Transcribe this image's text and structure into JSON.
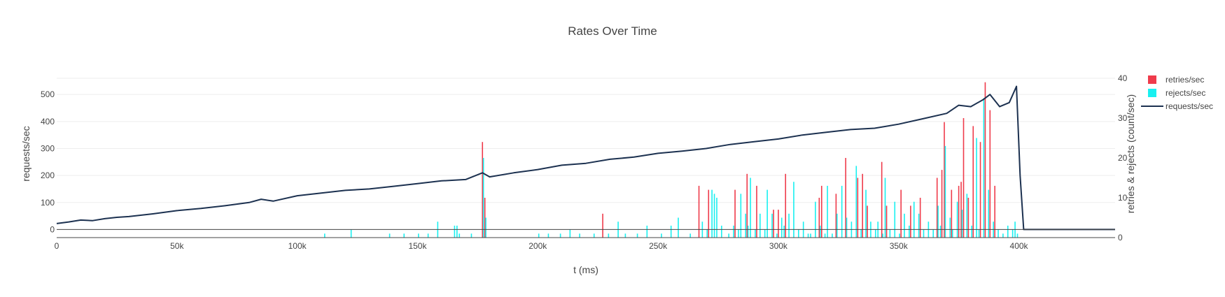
{
  "chart_data": {
    "type": "bar",
    "title": "Rates Over Time",
    "xlabel": "t (ms)",
    "ylabel": "requests/sec",
    "y2label": "retries & rejects (count/sec)",
    "xlim": [
      0,
      440000
    ],
    "ylim": [
      -30,
      560
    ],
    "y2lim": [
      0,
      40
    ],
    "xticks": [
      0,
      50000,
      100000,
      150000,
      200000,
      250000,
      300000,
      350000,
      400000
    ],
    "xtick_labels": [
      "0",
      "50k",
      "100k",
      "150k",
      "200k",
      "250k",
      "300k",
      "350k",
      "400k"
    ],
    "yticks": [
      0,
      100,
      200,
      300,
      400,
      500
    ],
    "ytick_labels": [
      "0",
      "100",
      "200",
      "300",
      "400",
      "500"
    ],
    "y2ticks": [
      0,
      10,
      20,
      30,
      40
    ],
    "y2tick_labels": [
      "0",
      "10",
      "20",
      "30",
      "40"
    ],
    "grid": true,
    "legend_position": "top-right",
    "colors": {
      "retries": "#ef3b4b",
      "rejects": "#19f0f0",
      "requests": "#1c3150",
      "grid": "#eeeeee",
      "axis": "#444444"
    },
    "series": [
      {
        "name": "requests/sec",
        "type": "line",
        "x": [
          0,
          5000,
          10000,
          15000,
          20000,
          25000,
          30000,
          40000,
          50000,
          60000,
          70000,
          80000,
          85000,
          90000,
          100000,
          110000,
          120000,
          130000,
          140000,
          150000,
          160000,
          170000,
          177000,
          180000,
          190000,
          200000,
          210000,
          220000,
          230000,
          240000,
          250000,
          260000,
          270000,
          280000,
          290000,
          300000,
          310000,
          320000,
          330000,
          340000,
          350000,
          360000,
          370000,
          375000,
          380000,
          385000,
          388000,
          392000,
          396000,
          399000,
          400500,
          402000,
          410000,
          420000,
          430000,
          440000
        ],
        "y": [
          22,
          28,
          35,
          33,
          40,
          45,
          48,
          58,
          70,
          78,
          88,
          100,
          112,
          105,
          125,
          135,
          145,
          150,
          160,
          170,
          180,
          185,
          210,
          195,
          210,
          222,
          238,
          245,
          260,
          268,
          282,
          290,
          300,
          315,
          325,
          335,
          350,
          360,
          370,
          375,
          390,
          410,
          430,
          460,
          455,
          480,
          500,
          455,
          470,
          530,
          200,
          0,
          0,
          0,
          0,
          0
        ]
      },
      {
        "name": "retries/sec",
        "type": "bar",
        "axis": "y2",
        "x": [
          177000,
          178000,
          227000,
          267000,
          271000,
          282000,
          287000,
          291000,
          298000,
          300000,
          303000,
          317000,
          318000,
          324000,
          328000,
          333000,
          335000,
          337000,
          343000,
          345000,
          351000,
          355000,
          359000,
          366000,
          368000,
          369000,
          372000,
          375000,
          376000,
          377000,
          379000,
          381000,
          384000,
          386000,
          388000,
          390000
        ],
        "values": [
          24,
          10,
          6,
          13,
          12,
          12,
          16,
          13,
          7,
          7,
          16,
          10,
          13,
          11,
          20,
          15,
          16,
          8,
          19,
          8,
          12,
          8,
          10,
          15,
          17,
          29,
          12,
          13,
          14,
          30,
          10,
          28,
          24,
          39,
          32,
          13
        ]
      },
      {
        "name": "rejects/sec",
        "type": "bar",
        "axis": "y2",
        "x": [
          111000,
          122000,
          138000,
          144000,
          150000,
          154000,
          158000,
          165000,
          166000,
          167000,
          172000,
          177000,
          178000,
          200000,
          204000,
          209000,
          213000,
          217000,
          223000,
          229000,
          233000,
          236000,
          241000,
          245000,
          251000,
          255000,
          258000,
          263000,
          268000,
          270000,
          272000,
          273000,
          274000,
          276000,
          279000,
          281000,
          283000,
          284000,
          286000,
          287000,
          288000,
          290000,
          292000,
          294000,
          295000,
          297000,
          299000,
          301000,
          302000,
          304000,
          306000,
          308000,
          310000,
          312000,
          313000,
          315000,
          317000,
          319000,
          320000,
          322000,
          324000,
          326000,
          328000,
          330000,
          332000,
          334000,
          336000,
          338000,
          340000,
          341000,
          343000,
          344000,
          346000,
          348000,
          350000,
          352000,
          354000,
          356000,
          358000,
          360000,
          362000,
          364000,
          366000,
          367000,
          369000,
          371000,
          372000,
          374000,
          376000,
          378000,
          380000,
          382000,
          383000,
          385000,
          387000,
          389000,
          391000,
          393000,
          395000,
          397000,
          398000,
          399000
        ],
        "values": [
          1,
          2,
          1,
          1,
          1,
          1,
          4,
          3,
          3,
          1,
          1,
          20,
          5,
          1,
          1,
          1,
          2,
          1,
          1,
          1,
          4,
          1,
          1,
          3,
          1,
          3,
          5,
          1,
          4,
          2,
          12,
          11,
          10,
          3,
          1,
          3,
          2,
          11,
          6,
          3,
          15,
          2,
          6,
          2,
          12,
          6,
          1,
          5,
          3,
          6,
          14,
          2,
          4,
          1,
          1,
          9,
          3,
          1,
          13,
          1,
          6,
          13,
          5,
          4,
          18,
          2,
          12,
          4,
          2,
          4,
          1,
          15,
          2,
          9,
          1,
          6,
          3,
          9,
          6,
          2,
          4,
          2,
          8,
          3,
          23,
          5,
          2,
          9,
          7,
          11,
          3,
          25,
          2,
          35,
          12,
          4,
          2,
          1,
          3,
          2,
          4,
          1
        ]
      }
    ]
  }
}
